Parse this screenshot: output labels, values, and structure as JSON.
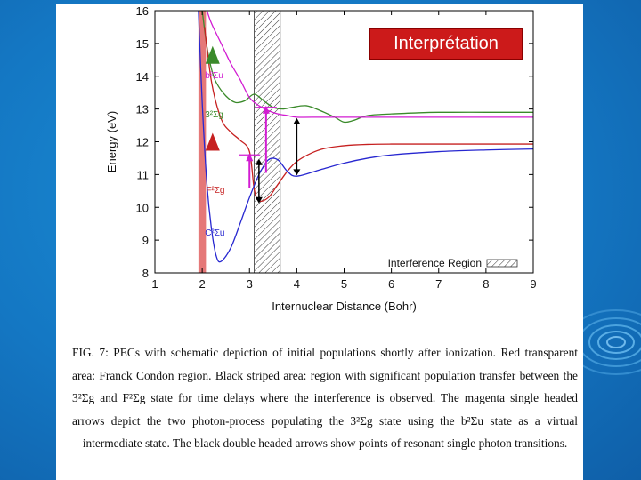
{
  "slide": {
    "overlay_title": "Interprétation",
    "caption": "FIG. 7: PECs with schematic depiction of initial populations shortly after ionization. Red transparent area: Franck Condon region. Black striped area: region with significant population transfer between the 3²Σg and F²Σg state for time delays where the interference is observed. The magenta single headed arrows depict the two photon-process populating the 3²Σg state using the b²Σu state as a virtual intermediate state. The black double headed arrows show points of resonant single photon transitions."
  },
  "colors": {
    "background": "#1477c3",
    "green": "#3a8a2a",
    "magenta": "#d21cd2",
    "red": "#c62020",
    "blue": "#2727d0",
    "franck_condon": "#e06060"
  },
  "chart_data": {
    "type": "line",
    "xlabel": "Internuclear Distance (Bohr)",
    "ylabel": "Energy (eV)",
    "xlim": [
      1,
      9
    ],
    "ylim": [
      8,
      16
    ],
    "xticks": [
      "1",
      "2",
      "3",
      "4",
      "5",
      "6",
      "7",
      "8",
      "9"
    ],
    "yticks": [
      "8",
      "9",
      "10",
      "11",
      "12",
      "13",
      "14",
      "15",
      "16"
    ],
    "grid": false,
    "legend": {
      "position": "bottom-right",
      "label": "Interference Region"
    },
    "franck_condon_region": [
      1.92,
      2.08
    ],
    "interference_region": [
      3.1,
      3.65
    ],
    "series": [
      {
        "name": "",
        "color": "green",
        "label": "3²Σg",
        "label_at": [
          1.38,
          12.85
        ],
        "x": [
          2.0,
          2.1,
          2.2,
          2.3,
          2.5,
          2.7,
          2.9,
          3.1,
          3.3,
          3.5,
          3.7,
          3.9,
          4.2,
          4.5,
          4.8,
          5.0,
          5.2,
          5.5,
          6.0,
          6.5,
          7.0,
          8.0,
          9.0
        ],
        "y": [
          16.0,
          14.9,
          14.2,
          13.8,
          13.4,
          13.2,
          13.25,
          13.45,
          13.25,
          13.05,
          13.0,
          13.05,
          13.1,
          12.95,
          12.75,
          12.6,
          12.65,
          12.8,
          12.85,
          12.88,
          12.9,
          12.9,
          12.9
        ]
      },
      {
        "name": "",
        "color": "magenta",
        "label": "b²Σu",
        "label_at": [
          1.38,
          14.05
        ],
        "x": [
          2.1,
          2.2,
          2.4,
          2.6,
          2.8,
          3.0,
          3.2,
          3.4,
          3.6,
          3.8,
          4.0,
          4.5,
          5.0,
          6.0,
          7.0,
          8.0,
          9.0
        ],
        "y": [
          16.0,
          15.6,
          15.0,
          14.4,
          13.9,
          13.35,
          13.1,
          12.95,
          12.85,
          12.8,
          12.75,
          12.75,
          12.75,
          12.75,
          12.75,
          12.75,
          12.75
        ]
      },
      {
        "name": "",
        "color": "red",
        "label": "F²Σg",
        "label_at": [
          1.4,
          10.55
        ],
        "x": [
          2.05,
          2.2,
          2.4,
          2.6,
          2.8,
          3.0,
          3.1,
          3.2,
          3.4,
          3.6,
          3.8,
          4.0,
          4.3,
          4.6,
          5.0,
          5.5,
          6.0,
          7.0,
          8.0,
          9.0
        ],
        "y": [
          15.5,
          13.8,
          12.7,
          12.3,
          12.05,
          11.7,
          10.55,
          10.2,
          10.3,
          10.7,
          11.1,
          11.4,
          11.65,
          11.8,
          11.88,
          11.92,
          11.93,
          11.93,
          11.93,
          11.93
        ]
      },
      {
        "name": "",
        "color": "blue",
        "label": "C²Σu",
        "label_at": [
          1.38,
          9.25
        ],
        "x": [
          1.92,
          2.0,
          2.1,
          2.2,
          2.3,
          2.4,
          2.6,
          2.8,
          3.0,
          3.2,
          3.4,
          3.6,
          3.8,
          4.0,
          4.5,
          5.0,
          5.5,
          6.0,
          7.0,
          8.0,
          9.0
        ],
        "y": [
          16.0,
          13.2,
          10.7,
          9.3,
          8.5,
          8.35,
          8.75,
          9.5,
          10.3,
          11.0,
          11.45,
          11.45,
          11.1,
          10.95,
          11.15,
          11.35,
          11.5,
          11.6,
          11.7,
          11.75,
          11.78
        ]
      }
    ],
    "annotations": {
      "initial_populations": [
        {
          "color": "green",
          "x": 2.22,
          "y": 14.65
        },
        {
          "color": "red",
          "x": 2.22,
          "y": 12.0
        }
      ],
      "magenta_single_arrows": [
        {
          "x": [
            3.35,
            3.35
          ],
          "y": [
            11.05,
            13.05
          ]
        },
        {
          "x": [
            3.0,
            3.0
          ],
          "y": [
            10.6,
            11.6
          ]
        }
      ],
      "black_double_arrows": [
        {
          "x": [
            3.2,
            3.2
          ],
          "y": [
            10.15,
            11.45
          ]
        },
        {
          "x": [
            4.0,
            4.0
          ],
          "y": [
            11.0,
            12.7
          ]
        }
      ]
    }
  }
}
